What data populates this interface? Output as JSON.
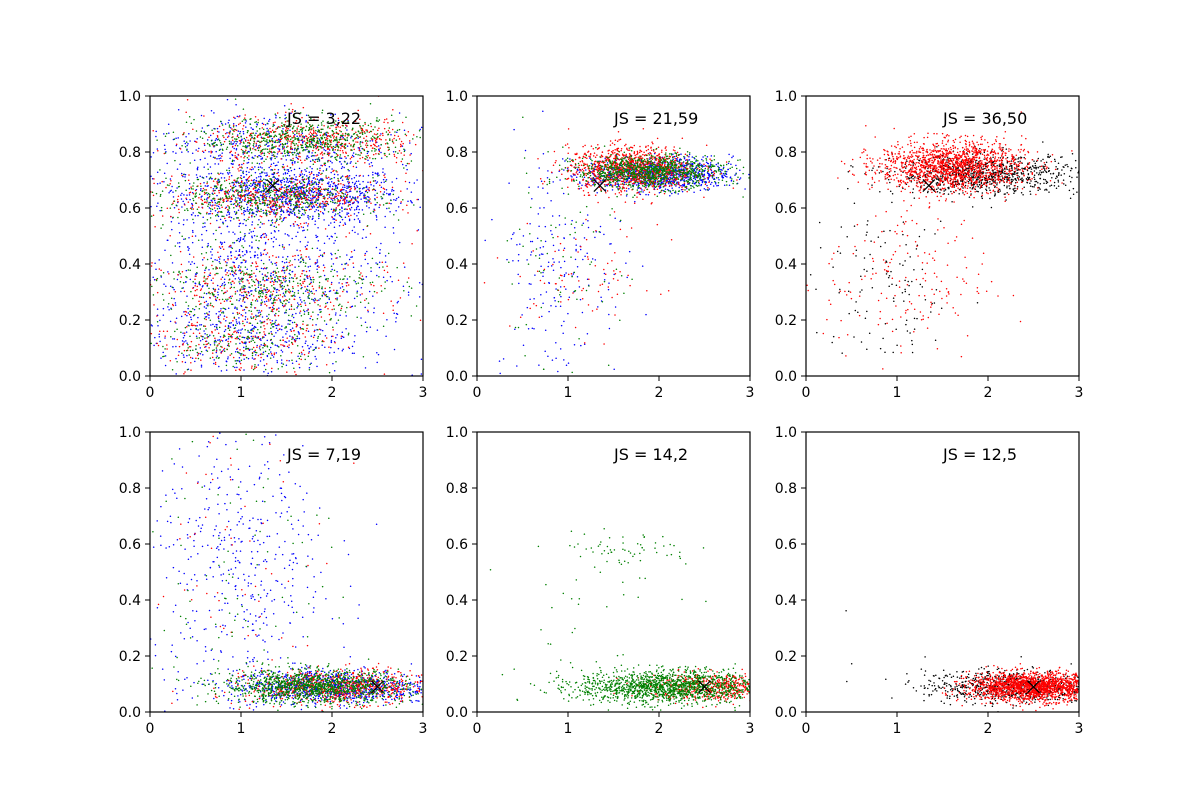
{
  "chart_data": [
    {
      "type": "scatter",
      "annotation": "JS = 3,22",
      "xlim": [
        0,
        3
      ],
      "ylim": [
        0,
        1
      ],
      "xticks": [
        "0",
        "1",
        "2",
        "3"
      ],
      "yticks": [
        "0.0",
        "0.2",
        "0.4",
        "0.6",
        "0.8",
        "1.0"
      ],
      "grid": false,
      "marker_label": "X",
      "marker": {
        "x": 1.35,
        "y": 0.68,
        "color": "#000000"
      },
      "series": [
        {
          "color": "#0000ff",
          "clusters": [
            {
              "x": 1.6,
              "y": 0.65,
              "sx": 0.6,
              "sy": 0.05,
              "n": 900
            },
            {
              "x": 1.2,
              "y": 0.35,
              "sx": 0.7,
              "sy": 0.15,
              "n": 700
            },
            {
              "x": 1.3,
              "y": 0.82,
              "sx": 0.7,
              "sy": 0.06,
              "n": 400
            },
            {
              "x": 1.0,
              "y": 0.12,
              "sx": 0.6,
              "sy": 0.06,
              "n": 250
            },
            {
              "x": 1.3,
              "y": 0.5,
              "sx": 1.0,
              "sy": 0.3,
              "n": 300
            }
          ]
        },
        {
          "color": "#ff0000",
          "clusters": [
            {
              "x": 1.8,
              "y": 0.84,
              "sx": 0.6,
              "sy": 0.04,
              "n": 500
            },
            {
              "x": 1.4,
              "y": 0.64,
              "sx": 0.6,
              "sy": 0.04,
              "n": 500
            },
            {
              "x": 1.3,
              "y": 0.32,
              "sx": 0.6,
              "sy": 0.06,
              "n": 300
            },
            {
              "x": 1.0,
              "y": 0.12,
              "sx": 0.5,
              "sy": 0.06,
              "n": 200
            },
            {
              "x": 1.3,
              "y": 0.5,
              "sx": 1.0,
              "sy": 0.3,
              "n": 200
            }
          ]
        },
        {
          "color": "#008000",
          "clusters": [
            {
              "x": 1.7,
              "y": 0.84,
              "sx": 0.6,
              "sy": 0.04,
              "n": 600
            },
            {
              "x": 1.3,
              "y": 0.64,
              "sx": 0.6,
              "sy": 0.04,
              "n": 500
            },
            {
              "x": 1.3,
              "y": 0.32,
              "sx": 0.6,
              "sy": 0.06,
              "n": 350
            },
            {
              "x": 1.0,
              "y": 0.12,
              "sx": 0.5,
              "sy": 0.06,
              "n": 200
            },
            {
              "x": 1.3,
              "y": 0.5,
              "sx": 1.0,
              "sy": 0.3,
              "n": 200
            }
          ]
        }
      ]
    },
    {
      "type": "scatter",
      "annotation": "JS = 21,59",
      "xlim": [
        0,
        3
      ],
      "ylim": [
        0,
        1
      ],
      "xticks": [
        "0",
        "1",
        "2",
        "3"
      ],
      "yticks": [
        "0.0",
        "0.2",
        "0.4",
        "0.6",
        "0.8",
        "1.0"
      ],
      "grid": false,
      "marker_label": "X",
      "marker": {
        "x": 1.35,
        "y": 0.68,
        "color": "#000000"
      },
      "series": [
        {
          "color": "#0000ff",
          "clusters": [
            {
              "x": 2.0,
              "y": 0.72,
              "sx": 0.4,
              "sy": 0.03,
              "n": 900
            },
            {
              "x": 0.9,
              "y": 0.4,
              "sx": 0.35,
              "sy": 0.22,
              "n": 200
            }
          ]
        },
        {
          "color": "#ff0000",
          "clusters": [
            {
              "x": 1.7,
              "y": 0.74,
              "sx": 0.35,
              "sy": 0.04,
              "n": 1100
            },
            {
              "x": 1.2,
              "y": 0.35,
              "sx": 0.4,
              "sy": 0.1,
              "n": 80
            }
          ]
        },
        {
          "color": "#008000",
          "clusters": [
            {
              "x": 1.9,
              "y": 0.73,
              "sx": 0.4,
              "sy": 0.03,
              "n": 1000
            },
            {
              "x": 0.9,
              "y": 0.4,
              "sx": 0.4,
              "sy": 0.2,
              "n": 80
            }
          ]
        }
      ]
    },
    {
      "type": "scatter",
      "annotation": "JS = 36,50",
      "xlim": [
        0,
        3
      ],
      "ylim": [
        0,
        1
      ],
      "xticks": [
        "0",
        "1",
        "2",
        "3"
      ],
      "yticks": [
        "0.0",
        "0.2",
        "0.4",
        "0.6",
        "0.8",
        "1.0"
      ],
      "grid": false,
      "marker_label": "X",
      "marker": {
        "x": 1.35,
        "y": 0.68,
        "color": "#000000"
      },
      "series": [
        {
          "color": "#000000",
          "clusters": [
            {
              "x": 2.0,
              "y": 0.72,
              "sx": 0.5,
              "sy": 0.035,
              "n": 900
            },
            {
              "x": 0.9,
              "y": 0.3,
              "sx": 0.4,
              "sy": 0.15,
              "n": 120
            }
          ]
        },
        {
          "color": "#ff0000",
          "clusters": [
            {
              "x": 1.6,
              "y": 0.75,
              "sx": 0.4,
              "sy": 0.045,
              "n": 1500
            },
            {
              "x": 1.1,
              "y": 0.35,
              "sx": 0.45,
              "sy": 0.15,
              "n": 180
            }
          ]
        }
      ]
    },
    {
      "type": "scatter",
      "annotation": "JS = 7,19",
      "xlim": [
        0,
        3
      ],
      "ylim": [
        0,
        1
      ],
      "xticks": [
        "0",
        "1",
        "2",
        "3"
      ],
      "yticks": [
        "0.0",
        "0.2",
        "0.4",
        "0.6",
        "0.8",
        "1.0"
      ],
      "grid": false,
      "marker_label": "X",
      "marker": {
        "x": 2.5,
        "y": 0.09,
        "color": "#000000"
      },
      "series": [
        {
          "color": "#0000ff",
          "clusters": [
            {
              "x": 2.0,
              "y": 0.09,
              "sx": 0.55,
              "sy": 0.03,
              "n": 900
            },
            {
              "x": 1.0,
              "y": 0.5,
              "sx": 0.5,
              "sy": 0.28,
              "n": 450
            }
          ]
        },
        {
          "color": "#ff0000",
          "clusters": [
            {
              "x": 2.1,
              "y": 0.09,
              "sx": 0.5,
              "sy": 0.03,
              "n": 700
            },
            {
              "x": 1.0,
              "y": 0.5,
              "sx": 0.5,
              "sy": 0.28,
              "n": 70
            }
          ]
        },
        {
          "color": "#008000",
          "clusters": [
            {
              "x": 1.8,
              "y": 0.09,
              "sx": 0.5,
              "sy": 0.03,
              "n": 1200
            },
            {
              "x": 1.0,
              "y": 0.5,
              "sx": 0.5,
              "sy": 0.28,
              "n": 90
            }
          ]
        }
      ]
    },
    {
      "type": "scatter",
      "annotation": "JS = 14,2",
      "xlim": [
        0,
        3
      ],
      "ylim": [
        0,
        1
      ],
      "xticks": [
        "0",
        "1",
        "2",
        "3"
      ],
      "yticks": [
        "0.0",
        "0.2",
        "0.4",
        "0.6",
        "0.8",
        "1.0"
      ],
      "grid": false,
      "marker_label": "X",
      "marker": {
        "x": 2.5,
        "y": 0.09,
        "color": "#000000"
      },
      "series": [
        {
          "color": "#ff0000",
          "clusters": [
            {
              "x": 2.6,
              "y": 0.09,
              "sx": 0.35,
              "sy": 0.025,
              "n": 500
            }
          ]
        },
        {
          "color": "#008000",
          "clusters": [
            {
              "x": 2.1,
              "y": 0.09,
              "sx": 0.5,
              "sy": 0.03,
              "n": 1500
            },
            {
              "x": 1.6,
              "y": 0.58,
              "sx": 0.4,
              "sy": 0.03,
              "n": 60
            },
            {
              "x": 1.2,
              "y": 0.4,
              "sx": 0.5,
              "sy": 0.15,
              "n": 30
            }
          ]
        }
      ]
    },
    {
      "type": "scatter",
      "annotation": "JS = 12,5",
      "xlim": [
        0,
        3
      ],
      "ylim": [
        0,
        1
      ],
      "xticks": [
        "0",
        "1",
        "2",
        "3"
      ],
      "yticks": [
        "0.0",
        "0.2",
        "0.4",
        "0.6",
        "0.8",
        "1.0"
      ],
      "grid": false,
      "marker_label": "X",
      "marker": {
        "x": 2.5,
        "y": 0.09,
        "color": "#000000"
      },
      "series": [
        {
          "color": "#000000",
          "clusters": [
            {
              "x": 2.2,
              "y": 0.09,
              "sx": 0.45,
              "sy": 0.03,
              "n": 700
            },
            {
              "x": 1.0,
              "y": 0.3,
              "sx": 0.4,
              "sy": 0.15,
              "n": 3
            }
          ]
        },
        {
          "color": "#ff0000",
          "clusters": [
            {
              "x": 2.5,
              "y": 0.09,
              "sx": 0.35,
              "sy": 0.025,
              "n": 1800
            }
          ]
        }
      ]
    }
  ]
}
